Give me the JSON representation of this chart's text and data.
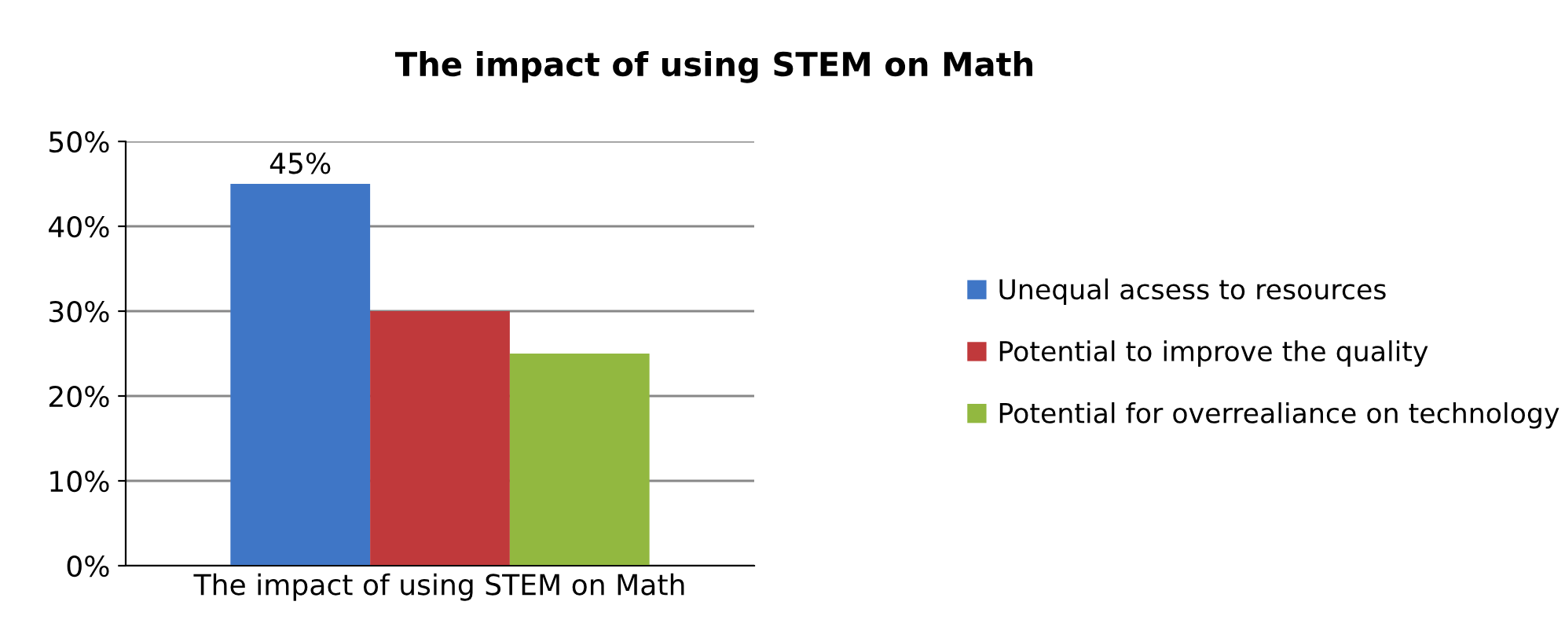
{
  "chart_data": {
    "type": "bar",
    "title": "The impact of using STEM on Math",
    "categories": [
      "The impact of using STEM on Math"
    ],
    "series": [
      {
        "name": "Unequal acsess to resources",
        "color": "#3f76c6",
        "values": [
          45
        ],
        "value_labels": [
          "45%"
        ]
      },
      {
        "name": "Potential to improve the quality",
        "color": "#c0393b",
        "values": [
          30
        ]
      },
      {
        "name": "Potential for overrealiance on technology",
        "color": "#92b840",
        "values": [
          25
        ]
      }
    ],
    "ylim": [
      0,
      50
    ],
    "yticks": [
      {
        "value": 0,
        "label": "0%"
      },
      {
        "value": 10,
        "label": "10%"
      },
      {
        "value": 20,
        "label": "20%"
      },
      {
        "value": 30,
        "label": "30%"
      },
      {
        "value": 40,
        "label": "40%"
      },
      {
        "value": 50,
        "label": "50%"
      }
    ],
    "grid": "y",
    "legend": "right"
  }
}
